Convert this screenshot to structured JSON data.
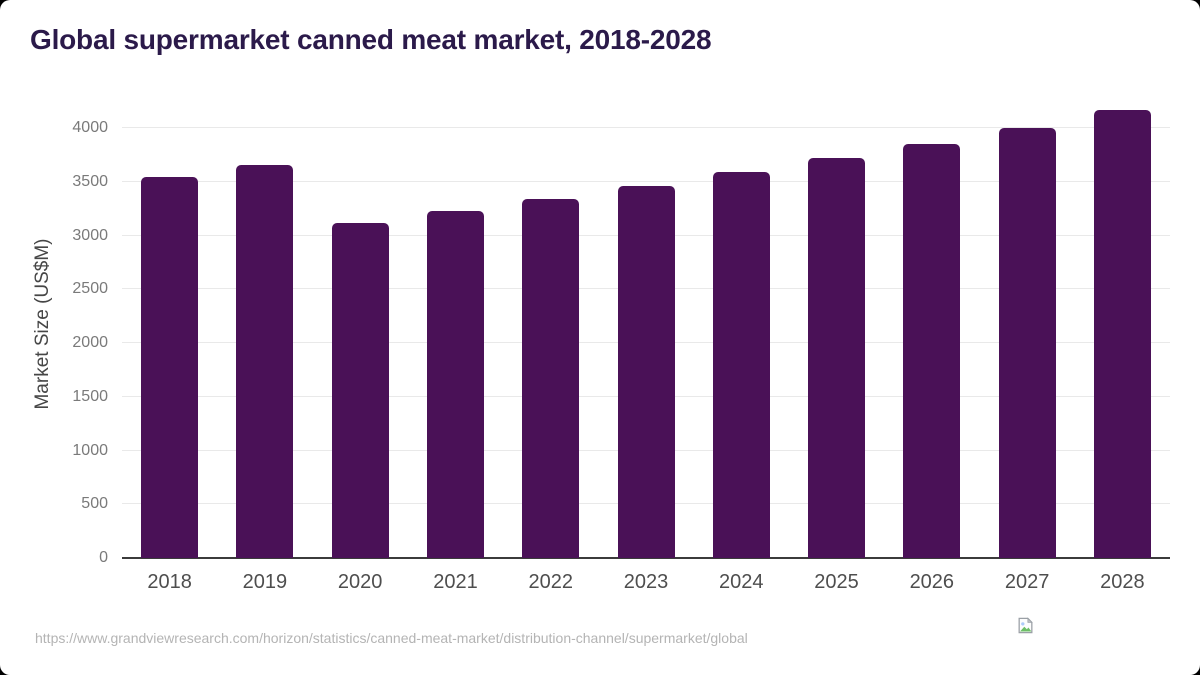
{
  "page": {
    "title": "Global supermarket canned meat market, 2018-2028",
    "source_url": "https://www.grandviewresearch.com/horizon/statistics/canned-meat-market/distribution-channel/supermarket/global",
    "logo_icon": "broken-image-icon"
  },
  "colors": {
    "background": "#000000",
    "card": "#ffffff",
    "bar": "#4a1157",
    "title": "#2b1a4a",
    "grid": "#e9e9e9",
    "axis": "#3b3b3b",
    "tick_label": "#7a7a7a",
    "x_label": "#4e4e4e",
    "axis_title": "#464646",
    "url": "#b4b4b4"
  },
  "chart_data": {
    "type": "bar",
    "title": "Global supermarket canned meat market, 2018-2028",
    "categories": [
      "2018",
      "2019",
      "2020",
      "2021",
      "2022",
      "2023",
      "2024",
      "2025",
      "2026",
      "2027",
      "2028"
    ],
    "values": [
      3545,
      3655,
      3120,
      3225,
      3340,
      3460,
      3590,
      3720,
      3855,
      4000,
      4165
    ],
    "xlabel": "",
    "ylabel": "Market Size (US$M)",
    "ylim": [
      0,
      4260
    ],
    "yticks": [
      0,
      500,
      1000,
      1500,
      2000,
      2500,
      3000,
      3500,
      4000
    ],
    "grid": true,
    "legend": false
  }
}
